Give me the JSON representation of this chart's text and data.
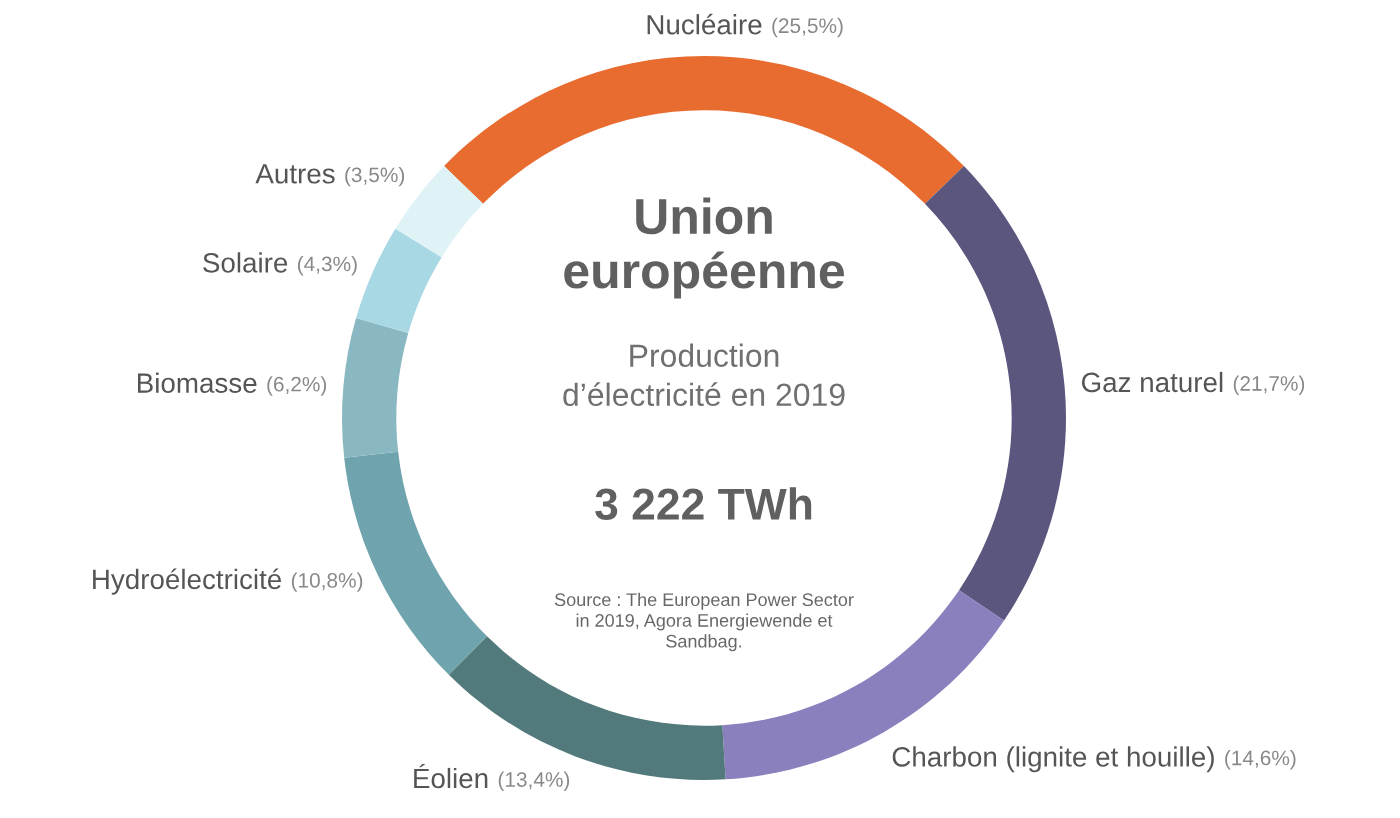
{
  "chart_data": {
    "type": "donut",
    "title": "Union\neuropéenne",
    "subtitle": "Production\nd’électricité en 2019",
    "annotations": [
      "3 222 TWh",
      "Source : The European Power Sector\nin 2019, Agora Energiewende et\nSandbag."
    ],
    "categories": [
      "Nucléaire",
      "Gaz naturel",
      "Charbon (lignite et houille)",
      "Éolien",
      "Hydroélectricité",
      "Biomasse",
      "Solaire",
      "Autres"
    ],
    "values": [
      25.5,
      21.7,
      14.6,
      13.4,
      10.8,
      6.2,
      4.3,
      3.5
    ],
    "value_labels": [
      "(25,5%)",
      "(21,7%)",
      "(14,6%)",
      "(13,4%)",
      "(10,8%)",
      "(6,2%)",
      "(4,3%)",
      "(3,5%)"
    ],
    "colors": [
      "#e86c30",
      "#5a567e",
      "#8a80bd",
      "#52797b",
      "#6fa3ae",
      "#8ab8c2",
      "#a8d8e3",
      "#dff2f6"
    ]
  }
}
